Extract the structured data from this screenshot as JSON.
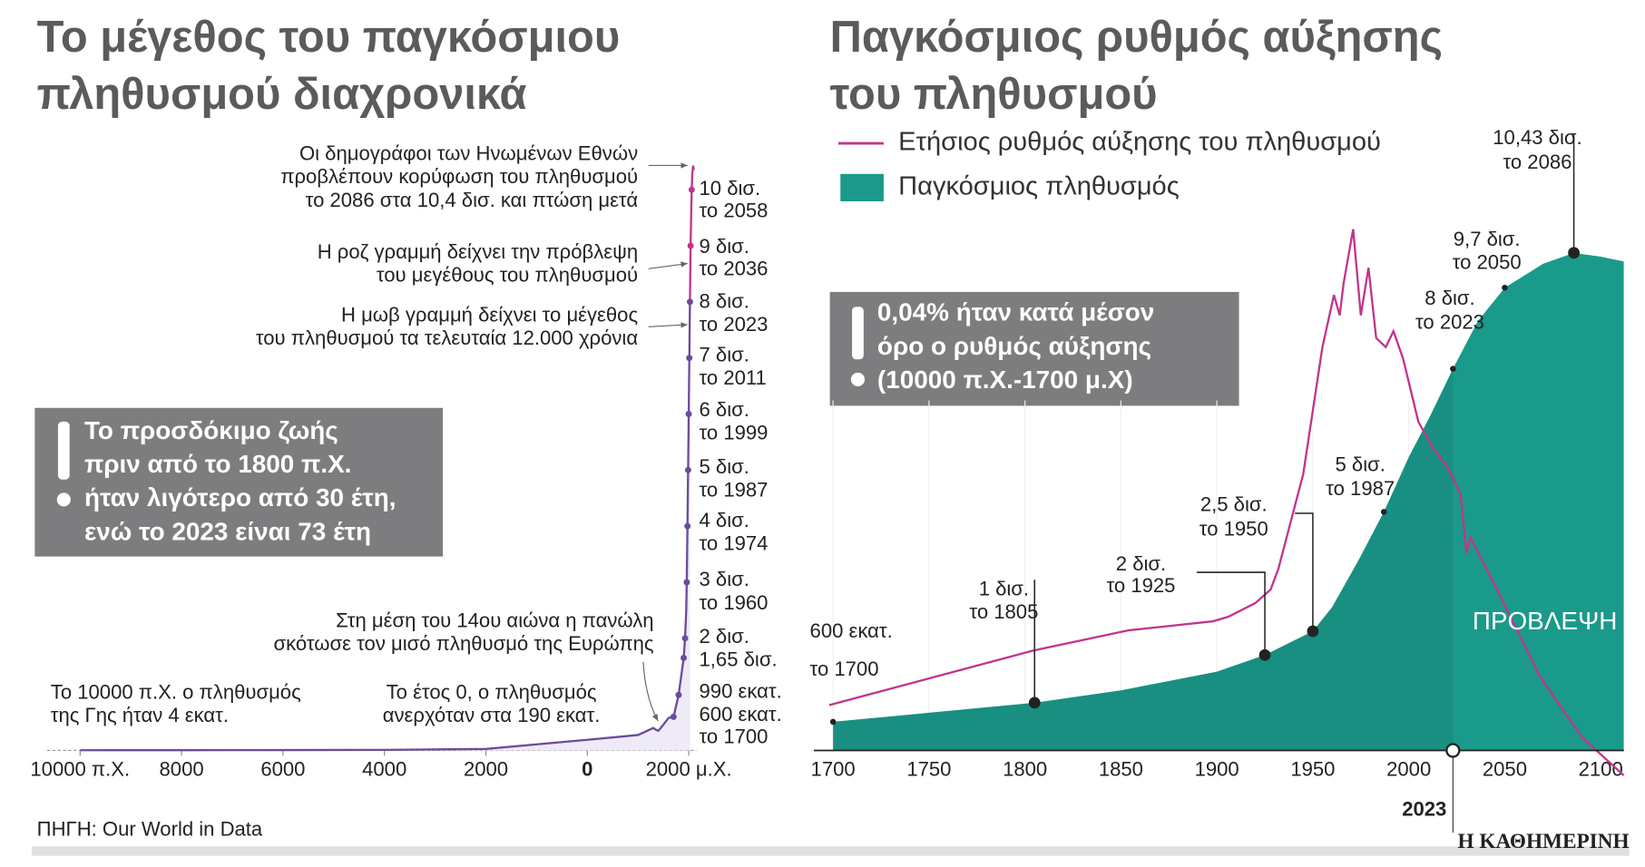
{
  "chart_data": [
    {
      "type": "line",
      "title": [
        "Το μέγεθος του παγκόσμιου",
        "πληθυσμού διαχρονικά"
      ],
      "xlim": [
        -10650,
        2150
      ],
      "xticks": [
        {
          "value": -10000,
          "label": "10000 π.Χ."
        },
        {
          "value": -8000,
          "label": "8000"
        },
        {
          "value": -6000,
          "label": "6000"
        },
        {
          "value": -4000,
          "label": "4000"
        },
        {
          "value": -2000,
          "label": "2000"
        },
        0,
        {
          "value": 2000,
          "label": "2000 μ.Χ."
        }
      ],
      "ylim": [
        0,
        10500
      ],
      "series": [
        {
          "color": "#6a4c9c",
          "x": [
            -10000,
            -8000,
            -6000,
            -4000,
            -2000,
            0,
            1000,
            1300,
            1350,
            1400,
            1500,
            1600,
            1700,
            1800,
            1900,
            1927,
            1950,
            1960,
            1974,
            1987,
            1999,
            2011,
            2023
          ],
          "values": [
            4,
            5,
            7,
            10,
            27,
            190,
            275,
            400,
            370,
            350,
            460,
            580,
            600,
            990,
            1650,
            2000,
            2500,
            3000,
            4000,
            5000,
            6000,
            7000,
            8000
          ]
        },
        {
          "color": "#c2348e",
          "x": [
            2023,
            2036,
            2050,
            2058,
            2070,
            2086,
            2100
          ],
          "values": [
            8000,
            9000,
            9700,
            10000,
            10300,
            10430,
            10350
          ]
        }
      ],
      "milestones": {
        "x": [
          2058,
          2036,
          2023,
          2011,
          1999,
          1987,
          1974,
          1960,
          1927,
          1900,
          1800,
          1700
        ],
        "values": [
          10000,
          9000,
          8000,
          7000,
          6000,
          5000,
          4000,
          3000,
          2000,
          1650,
          990,
          600
        ],
        "value_labels": [
          "10 δισ.",
          "9 δισ.",
          "8 δισ.",
          "7 δισ.",
          "6 δισ.",
          "5 δισ.",
          "4 δισ.",
          "3 δισ.",
          "2 δισ.",
          "1,65 δισ.",
          "990 εκατ.",
          "600 εκατ."
        ],
        "year_labels": [
          "το 2058",
          "το 2036",
          "το 2023",
          "το 2011",
          "το 1999",
          "το 1987",
          "το 1974",
          "το 1960",
          null,
          null,
          null,
          "το 1700"
        ]
      },
      "annotations": [
        [
          "Οι δημογράφοι των Ηνωμένων Εθνών",
          "προβλέπουν κορύφωση του πληθυσμού",
          "το 2086 στα 10,4 δισ. και πτώση μετά"
        ],
        [
          "Η ροζ γραμμή δείχνει την πρόβλεψη",
          "του μεγέθους του πληθυσμού"
        ],
        [
          "Η μωβ γραμμή δείχνει το μέγεθος",
          "του πληθυσμού τα τελευταία 12.000 χρόνια"
        ],
        [
          "Στη μέση του 14ου αιώνα η πανώλη",
          "σκότωσε τον μισό πληθυσμό της Ευρώπης"
        ],
        [
          "Το έτος 0, ο πληθυσμός",
          "ανερχόταν στα 190 εκατ."
        ],
        [
          "Το 10000 π.Χ. ο πληθυσμός",
          "της Γης ήταν 4 εκατ."
        ]
      ],
      "callout": [
        "Το προσδόκιμο ζωής",
        "πριν από το 1800 π.Χ.",
        "ήταν λιγότερο από 30 έτη,",
        "ενώ το 2023 είναι 73 έτη"
      ]
    },
    {
      "type": "area",
      "title": [
        "Παγκόσμιος ρυθμός αύξησης",
        "του πληθυσμού"
      ],
      "xlim": [
        1690,
        2120
      ],
      "xticks": [
        1700,
        1750,
        1800,
        1850,
        1900,
        1950,
        2000,
        2050,
        2100
      ],
      "ylim": [
        0,
        12350
      ],
      "y2lim": [
        -0.1,
        2.5
      ],
      "series": [
        {
          "name": "Ετήσιος ρυθμός αύξησης του πληθυσμού",
          "color": "#c2348e",
          "type": "line",
          "axis": "y2",
          "x": [
            1698,
            1804,
            1854,
            1898,
            1906,
            1920,
            1928,
            1932,
            1945,
            1955,
            1961,
            1964,
            1966,
            1971,
            1975,
            1979,
            1983,
            1988,
            1992,
            1997,
            2005,
            2013,
            2021,
            2027,
            2030,
            2032,
            2046,
            2068,
            2090,
            2112
          ],
          "values": [
            0.1,
            0.34,
            0.43,
            0.47,
            0.49,
            0.55,
            0.61,
            0.7,
            1.12,
            1.68,
            1.91,
            1.82,
            1.96,
            2.2,
            1.82,
            2.03,
            1.72,
            1.68,
            1.75,
            1.63,
            1.35,
            1.23,
            1.14,
            1.03,
            0.77,
            0.84,
            0.61,
            0.23,
            -0.04,
            -0.21
          ]
        },
        {
          "name": "Παγκόσμιος πληθυσμός",
          "color": "#1a9a8b",
          "type": "area",
          "x": [
            1700,
            1750,
            1805,
            1850,
            1900,
            1925,
            1950,
            1960,
            1974,
            1987,
            2000,
            2011,
            2023,
            2036,
            2050,
            2070,
            2086,
            2100,
            2112
          ],
          "values": [
            600,
            790,
            1000,
            1260,
            1650,
            2000,
            2500,
            3000,
            4000,
            5000,
            6150,
            7000,
            8000,
            9000,
            9700,
            10200,
            10430,
            10350,
            10250
          ]
        }
      ],
      "forecast": {
        "label": "ΠΡΟΒΛΕΨΗ",
        "start": 2023
      },
      "milestones": {
        "x": [
          1700,
          1805,
          1925,
          1950,
          1987,
          2023,
          2050,
          2086
        ],
        "values": [
          600,
          1000,
          2000,
          2500,
          5000,
          8000,
          9700,
          10430
        ],
        "value_labels": [
          "600 εκατ.",
          "1 δισ.",
          "2 δισ.",
          "2,5 δισ.",
          "5 δισ.",
          "8 δισ.",
          "9,7 δισ.",
          "10,43 δισ."
        ],
        "year_labels": [
          "το 1700",
          "το 1805",
          "το 1925",
          "το 1950",
          "το 1987",
          "το 2023",
          "το 2050",
          "το 2086"
        ]
      },
      "callout": [
        "0,04% ήταν κατά μέσον",
        "όρο ο ρυθμός αύξησης",
        "(10000 π.Χ.-1700 μ.Χ)"
      ]
    }
  ],
  "footer": {
    "source": "ΠΗΓΗ: Our World in Data",
    "brand": "Η ΚΑΘΗΜΕΡΙΝΗ"
  }
}
